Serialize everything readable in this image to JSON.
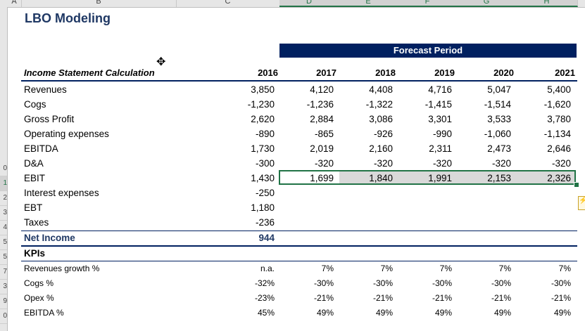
{
  "col_headers": [
    "A",
    "B",
    "C",
    "D",
    "E",
    "F",
    "G",
    "H"
  ],
  "row_headers": [
    "0",
    "1",
    "2",
    "3",
    "4",
    "5",
    "5",
    "7",
    "3",
    "9",
    "0"
  ],
  "title": "LBO Modeling",
  "forecast_label": "Forecast Period",
  "table_label": "Income Statement Calculation",
  "years": [
    "2016",
    "2017",
    "2018",
    "2019",
    "2020",
    "2021"
  ],
  "rows": [
    {
      "label": "Revenues",
      "values": [
        "3,850",
        "4,120",
        "4,408",
        "4,716",
        "5,047",
        "5,400"
      ]
    },
    {
      "label": "Cogs",
      "values": [
        "-1,230",
        "-1,236",
        "-1,322",
        "-1,415",
        "-1,514",
        "-1,620"
      ]
    },
    {
      "label": "Gross Profit",
      "values": [
        "2,620",
        "2,884",
        "3,086",
        "3,301",
        "3,533",
        "3,780"
      ]
    },
    {
      "label": "Operating expenses",
      "values": [
        "-890",
        "-865",
        "-926",
        "-990",
        "-1,060",
        "-1,134"
      ]
    },
    {
      "label": "EBITDA",
      "values": [
        "1,730",
        "2,019",
        "2,160",
        "2,311",
        "2,473",
        "2,646"
      ]
    },
    {
      "label": "D&A",
      "values": [
        "-300",
        "-320",
        "-320",
        "-320",
        "-320",
        "-320"
      ]
    },
    {
      "label": "EBIT",
      "values": [
        "1,430",
        "1,699",
        "1,840",
        "1,991",
        "2,153",
        "2,326"
      ]
    },
    {
      "label": "Interest expenses",
      "values": [
        "-250",
        "",
        "",
        "",
        "",
        ""
      ]
    },
    {
      "label": "EBT",
      "values": [
        "1,180",
        "",
        "",
        "",
        "",
        ""
      ]
    },
    {
      "label": "Taxes",
      "values": [
        "-236",
        "",
        "",
        "",
        "",
        ""
      ]
    }
  ],
  "net_income": {
    "label": "Net Income",
    "value": "944"
  },
  "kpis_label": "KPIs",
  "kpis": [
    {
      "label": "Revenues growth %",
      "values": [
        "n.a.",
        "7%",
        "7%",
        "7%",
        "7%",
        "7%"
      ]
    },
    {
      "label": "Cogs %",
      "values": [
        "-32%",
        "-30%",
        "-30%",
        "-30%",
        "-30%",
        "-30%"
      ]
    },
    {
      "label": "Opex %",
      "values": [
        "-23%",
        "-21%",
        "-21%",
        "-21%",
        "-21%",
        "-21%"
      ]
    },
    {
      "label": "EBITDA %",
      "values": [
        "45%",
        "49%",
        "49%",
        "49%",
        "49%",
        "49%"
      ]
    }
  ],
  "colors": {
    "navy": "#002060",
    "title": "#1f3864",
    "excel_green": "#217346",
    "selection": "#d9d9d9"
  }
}
